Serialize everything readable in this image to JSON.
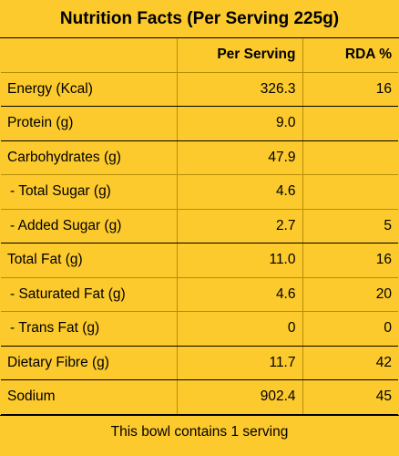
{
  "title": "Nutrition Facts (Per Serving 225g)",
  "columns": {
    "per_serving": "Per Serving",
    "rda": "RDA %"
  },
  "rows": [
    {
      "label": "Energy (Kcal)",
      "per_serving": "326.3",
      "rda": "16",
      "sub": false
    },
    {
      "label": "Protein (g)",
      "per_serving": "9.0",
      "rda": "",
      "sub": false
    },
    {
      "label": "Carbohydrates (g)",
      "per_serving": "47.9",
      "rda": "",
      "sub": false
    },
    {
      "label": "-  Total Sugar (g)",
      "per_serving": "4.6",
      "rda": "",
      "sub": true
    },
    {
      "label": "-  Added Sugar (g)",
      "per_serving": "2.7",
      "rda": "5",
      "sub": true
    },
    {
      "label": "Total Fat (g)",
      "per_serving": "11.0",
      "rda": "16",
      "sub": false
    },
    {
      "label": "-  Saturated Fat (g)",
      "per_serving": "4.6",
      "rda": "20",
      "sub": true
    },
    {
      "label": "-  Trans Fat (g)",
      "per_serving": "0",
      "rda": "0",
      "sub": true
    },
    {
      "label": "Dietary Fibre (g)",
      "per_serving": "11.7",
      "rda": "42",
      "sub": false
    },
    {
      "label": "Sodium",
      "per_serving": "902.4",
      "rda": "45",
      "sub": false
    }
  ],
  "footer": "This bowl contains 1 serving",
  "colors": {
    "background": "#fcca2d",
    "text": "#000000"
  }
}
